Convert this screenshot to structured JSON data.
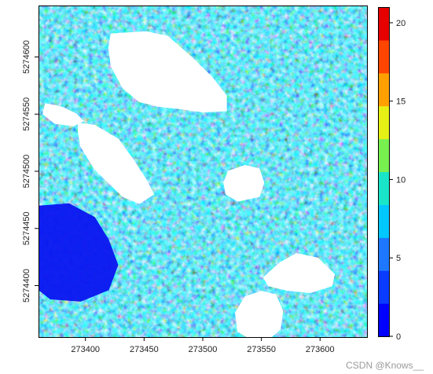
{
  "chart_data": {
    "type": "heatmap",
    "title": "",
    "xlabel": "",
    "ylabel": "",
    "x_range": [
      273360,
      273640
    ],
    "y_range": [
      5274355,
      5274645
    ],
    "x_ticks": [
      273400,
      273450,
      273500,
      273550,
      273600
    ],
    "x_tick_labels": [
      "273400",
      "273450",
      "273500",
      "273550",
      "273600"
    ],
    "y_ticks": [
      5274400,
      5274450,
      5274500,
      5274550,
      5274600
    ],
    "y_tick_labels": [
      "5274400",
      "5274450",
      "5274500",
      "5274550",
      "5274600"
    ],
    "value_range": [
      0,
      21
    ],
    "legend_ticks": [
      0,
      5,
      10,
      15,
      20
    ],
    "legend_tick_labels": [
      "0",
      "5",
      "10",
      "15",
      "20"
    ],
    "legend_position": "right",
    "colors": [
      "#0000ff",
      "#0a3cff",
      "#1e78ff",
      "#00c8ff",
      "#19e6c8",
      "#78f050",
      "#e6f014",
      "#ffa000",
      "#ff4600",
      "#e60000"
    ],
    "grid": false,
    "nodata_regions": [
      {
        "name": "gap-1",
        "points": [
          [
            273422,
            5274620
          ],
          [
            273452,
            5274622
          ],
          [
            273470,
            5274618
          ],
          [
            273490,
            5274600
          ],
          [
            273508,
            5274582
          ],
          [
            273520,
            5274566
          ],
          [
            273520,
            5274553
          ],
          [
            273500,
            5274552
          ],
          [
            273480,
            5274555
          ],
          [
            273462,
            5274557
          ],
          [
            273446,
            5274561
          ],
          [
            273432,
            5274573
          ],
          [
            273422,
            5274592
          ],
          [
            273420,
            5274608
          ]
        ]
      },
      {
        "name": "gap-2",
        "points": [
          [
            273366,
            5274559
          ],
          [
            273380,
            5274556
          ],
          [
            273392,
            5274550
          ],
          [
            273398,
            5274544
          ],
          [
            273390,
            5274540
          ],
          [
            273374,
            5274542
          ],
          [
            273364,
            5274550
          ]
        ]
      },
      {
        "name": "gap-3",
        "points": [
          [
            273394,
            5274542
          ],
          [
            273408,
            5274540
          ],
          [
            273428,
            5274528
          ],
          [
            273442,
            5274508
          ],
          [
            273452,
            5274492
          ],
          [
            273458,
            5274480
          ],
          [
            273446,
            5274472
          ],
          [
            273432,
            5274478
          ],
          [
            273420,
            5274490
          ],
          [
            273408,
            5274502
          ],
          [
            273396,
            5274522
          ],
          [
            273394,
            5274535
          ]
        ]
      },
      {
        "name": "gap-4",
        "points": [
          [
            273522,
            5274500
          ],
          [
            273536,
            5274505
          ],
          [
            273548,
            5274502
          ],
          [
            273552,
            5274490
          ],
          [
            273548,
            5274478
          ],
          [
            273530,
            5274474
          ],
          [
            273520,
            5274480
          ],
          [
            273518,
            5274490
          ]
        ]
      },
      {
        "name": "gap-5",
        "points": [
          [
            273552,
            5274407
          ],
          [
            273566,
            5274420
          ],
          [
            273580,
            5274428
          ],
          [
            273598,
            5274424
          ],
          [
            273612,
            5274410
          ],
          [
            273610,
            5274400
          ],
          [
            273592,
            5274394
          ],
          [
            273572,
            5274396
          ],
          [
            273556,
            5274400
          ]
        ]
      },
      {
        "name": "gap-6",
        "points": [
          [
            273536,
            5274390
          ],
          [
            273550,
            5274395
          ],
          [
            273562,
            5274392
          ],
          [
            273568,
            5274378
          ],
          [
            273566,
            5274362
          ],
          [
            273556,
            5274353
          ],
          [
            273540,
            5274354
          ],
          [
            273530,
            5274360
          ],
          [
            273528,
            5274376
          ]
        ]
      }
    ],
    "low_value_region": {
      "name": "low-left",
      "points": [
        [
          273360,
          5274470
        ],
        [
          273386,
          5274472
        ],
        [
          273408,
          5274460
        ],
        [
          273420,
          5274440
        ],
        [
          273428,
          5274418
        ],
        [
          273420,
          5274396
        ],
        [
          273396,
          5274386
        ],
        [
          273370,
          5274388
        ],
        [
          273360,
          5274396
        ]
      ]
    }
  },
  "watermark": "CSDN @Knows__"
}
